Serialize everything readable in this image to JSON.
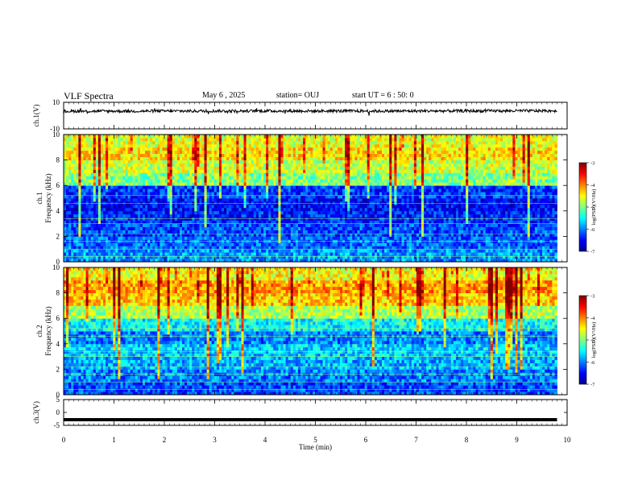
{
  "header": {
    "title": "VLF Spectra",
    "date": "May 6 , 2025",
    "station": "station= OUJ",
    "start": "start UT = 6 : 50: 0"
  },
  "chart_data": [
    {
      "type": "line",
      "panel": "waveform-ch1",
      "ylabel": "ch.1(V)",
      "ylim": [
        -10,
        10
      ],
      "y_ticks": [
        "10",
        "-10"
      ],
      "x": [
        0,
        2,
        4,
        6,
        8,
        9.8
      ],
      "values": [
        3.3,
        3.4,
        3.5,
        3.4,
        3.5,
        3.6
      ],
      "note": "noise band roughly 2 to 5 V"
    },
    {
      "type": "heatmap",
      "panel": "spectrogram-ch1",
      "ylabel": "ch.1 Frequency (kHz)",
      "ylim": [
        0,
        10
      ],
      "y_ticks": [
        "0",
        "2",
        "4",
        "6",
        "8",
        "10"
      ],
      "xlim": [
        0,
        9.8
      ],
      "rows_khz": [
        0.5,
        1.5,
        2.5,
        3.5,
        4.5,
        5.5,
        6.5,
        7.5,
        8.5,
        9.5
      ],
      "mean_log_psd": [
        -5.9,
        -6.1,
        -6.2,
        -6.4,
        -6.5,
        -6.3,
        -5.0,
        -4.7,
        -4.4,
        -4.6
      ],
      "colorbar": {
        "label": "log(PSD)(V²/Hz)",
        "range": [
          -7,
          -3
        ],
        "ticks": [
          "-3",
          "-4",
          "-5",
          "-6",
          "-7"
        ]
      }
    },
    {
      "type": "heatmap",
      "panel": "spectrogram-ch2",
      "ylabel": "ch.2 Frequency (kHz)",
      "ylim": [
        0,
        10
      ],
      "y_ticks": [
        "0",
        "2",
        "4",
        "6",
        "8",
        "10"
      ],
      "xlim": [
        0,
        9.8
      ],
      "rows_khz": [
        0.5,
        1.5,
        2.5,
        3.5,
        4.5,
        5.5,
        6.5,
        7.5,
        8.5,
        9.5
      ],
      "mean_log_psd": [
        -6.2,
        -6.0,
        -5.8,
        -5.7,
        -6.0,
        -5.5,
        -4.8,
        -4.3,
        -4.1,
        -4.5
      ],
      "colorbar": {
        "label": "log(PSD)(V²/Hz)",
        "range": [
          -7,
          -3
        ],
        "ticks": [
          "-3",
          "-4",
          "-5",
          "-6",
          "-7"
        ]
      }
    },
    {
      "type": "line",
      "panel": "waveform-ch3",
      "ylabel": "ch.3(V)",
      "ylim": [
        -5,
        5
      ],
      "y_ticks": [
        "5",
        "0",
        "-5"
      ],
      "x": [
        0,
        9.8
      ],
      "values": [
        -2.8,
        -2.8
      ]
    }
  ],
  "x_axis": {
    "label": "Time (min)",
    "range": [
      0,
      10
    ],
    "ticks": [
      "0",
      "1",
      "2",
      "3",
      "4",
      "5",
      "6",
      "7",
      "8",
      "9",
      "10"
    ]
  },
  "colors": {
    "psd_colormap": [
      "#00008f",
      "#0000ff",
      "#0080ff",
      "#00ffff",
      "#80ff80",
      "#ffff00",
      "#ff8000",
      "#ff0000",
      "#800000"
    ]
  }
}
